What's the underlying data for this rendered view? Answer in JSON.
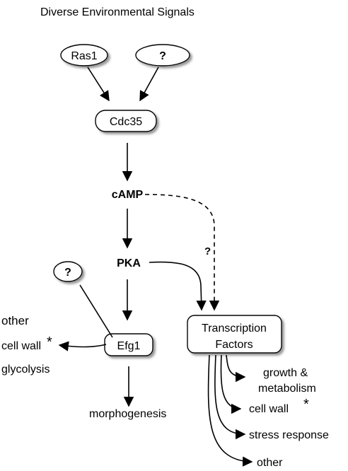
{
  "title": "Diverse Environmental Signals",
  "nodes": {
    "ras1": "Ras1",
    "unknown_top": "?",
    "cdc35": "Cdc35",
    "camp": "cAMP",
    "pka": "PKA",
    "unknown_left": "?",
    "efg1": "Efg1",
    "tf_line1": "Transcription",
    "tf_line2": "Factors"
  },
  "edge_labels": {
    "pka_to_tf_question": "?"
  },
  "efg1_targets": {
    "other": "other",
    "cell_wall": "cell wall",
    "cell_wall_mark": "*",
    "glycolysis": "glycolysis",
    "morphogenesis": "morphogenesis"
  },
  "tf_targets": {
    "growth_line1": "growth &",
    "growth_line2": "metabolism",
    "cell_wall": "cell wall",
    "cell_wall_mark": "*",
    "stress_response": "stress response",
    "other": "other"
  },
  "colors": {
    "stroke": "#000000",
    "node_fill": "#ffffff",
    "shadow": "#8c8c8c"
  }
}
